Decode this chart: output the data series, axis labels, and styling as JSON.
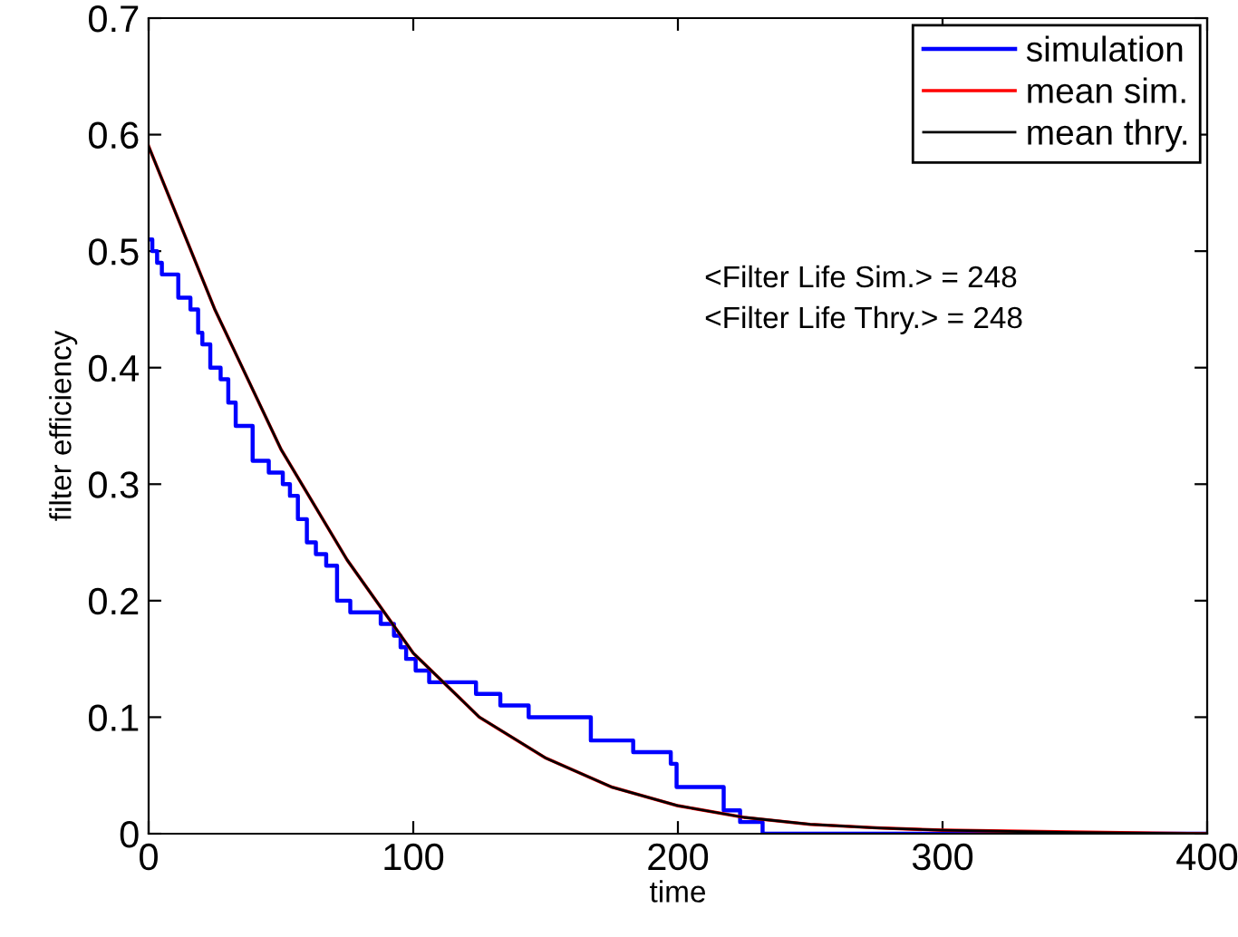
{
  "chart_data": {
    "type": "line",
    "xlabel": "time",
    "ylabel": "filter efficiency",
    "xlim": [
      0,
      400
    ],
    "ylim": [
      0,
      0.7
    ],
    "xticks": [
      0,
      100,
      200,
      300,
      400
    ],
    "yticks": [
      0,
      0.1,
      0.2,
      0.3,
      0.4,
      0.5,
      0.6,
      0.7
    ],
    "grid": false,
    "legend": "top right",
    "marker": "none",
    "line_style": "solid",
    "series": [
      {
        "name": "simulation",
        "type": "step",
        "color": "#0000ff",
        "x": [
          0,
          1.4,
          3.2,
          5,
          11.2,
          15.8,
          18.7,
          20.3,
          23.3,
          27.2,
          30.1,
          32.9,
          39.3,
          45.4,
          50.7,
          53.4,
          56.4,
          59.8,
          63.2,
          67.1,
          71.2,
          76.2,
          87.7,
          92.7,
          95.2,
          97.3,
          100.9,
          106,
          123.7,
          132.9,
          143.6,
          167.1,
          183.1,
          197.3,
          199.5,
          217.3,
          223.5,
          232,
          400
        ],
        "values": [
          0.51,
          0.5,
          0.49,
          0.48,
          0.46,
          0.45,
          0.43,
          0.42,
          0.4,
          0.39,
          0.37,
          0.35,
          0.32,
          0.31,
          0.3,
          0.29,
          0.27,
          0.25,
          0.24,
          0.23,
          0.2,
          0.19,
          0.18,
          0.17,
          0.16,
          0.15,
          0.14,
          0.13,
          0.12,
          0.11,
          0.1,
          0.08,
          0.07,
          0.06,
          0.04,
          0.02,
          0.01,
          0,
          0
        ]
      },
      {
        "name": "mean sim.",
        "color": "#ff0000",
        "x": [
          0,
          25,
          50,
          75,
          100,
          125,
          150,
          175,
          200,
          225,
          250,
          275,
          300,
          400
        ],
        "values": [
          0.59,
          0.45,
          0.33,
          0.235,
          0.155,
          0.1,
          0.065,
          0.04,
          0.024,
          0.014,
          0.008,
          0.005,
          0.003,
          0
        ]
      },
      {
        "name": "mean thry.",
        "color": "#000000",
        "x": [
          0,
          25,
          50,
          75,
          100,
          125,
          150,
          175,
          200,
          225,
          250,
          275,
          300,
          350,
          400
        ],
        "values": [
          0.59,
          0.45,
          0.33,
          0.235,
          0.155,
          0.1,
          0.065,
          0.04,
          0.024,
          0.014,
          0.008,
          0.005,
          0.003,
          0.001,
          0
        ]
      }
    ],
    "annotations": [
      "<Filter Life Sim.> = 248",
      "<Filter Life Thry.> = 248"
    ]
  }
}
